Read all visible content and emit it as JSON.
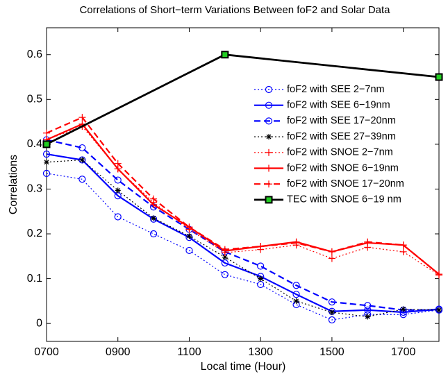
{
  "chart_data": {
    "type": "line",
    "title": "Correlations of Short−term Variations Between foF2 and Solar Data",
    "x_label": "Local time (Hour)",
    "y_label": "Correlations",
    "x": [
      700,
      800,
      900,
      1000,
      1100,
      1200,
      1300,
      1400,
      1500,
      1600,
      1700,
      1800
    ],
    "xlim": [
      700,
      1800
    ],
    "xticks": [
      {
        "value": 700,
        "label": "0700"
      },
      {
        "value": 900,
        "label": "0900"
      },
      {
        "value": 1100,
        "label": "1100"
      },
      {
        "value": 1300,
        "label": "1300"
      },
      {
        "value": 1500,
        "label": "1500"
      },
      {
        "value": 1700,
        "label": "1700"
      }
    ],
    "ylim": [
      -0.04,
      0.66
    ],
    "yticks": [
      0,
      0.1,
      0.2,
      0.3,
      0.4,
      0.5,
      0.6
    ],
    "grid": false,
    "legend": "upper right",
    "series": [
      {
        "name": "foF2 with SEE 2−7nm",
        "color": "#0000ff",
        "linestyle": "dotted",
        "marker": "circle",
        "values": [
          0.335,
          0.322,
          0.238,
          0.2,
          0.163,
          0.109,
          0.087,
          0.042,
          0.008,
          0.02,
          0.02,
          0.03
        ]
      },
      {
        "name": "foF2 with SEE 6−19nm",
        "color": "#0000ff",
        "linestyle": "solid",
        "marker": "circle",
        "values": [
          0.378,
          0.365,
          0.285,
          0.233,
          0.192,
          0.135,
          0.105,
          0.065,
          0.027,
          0.03,
          0.025,
          0.032
        ]
      },
      {
        "name": "foF2 with SEE 17−20nm",
        "color": "#0000ff",
        "linestyle": "dashed",
        "marker": "circle",
        "values": [
          0.41,
          0.392,
          0.32,
          0.26,
          0.21,
          0.16,
          0.128,
          0.085,
          0.048,
          0.04,
          0.03,
          0.03
        ]
      },
      {
        "name": "foF2 with SEE 27−39nm",
        "color": "#000000",
        "linestyle": "dotted",
        "marker": "star",
        "values": [
          0.36,
          0.365,
          0.297,
          0.235,
          0.195,
          0.148,
          0.1,
          0.05,
          0.025,
          0.015,
          0.032,
          0.03
        ]
      },
      {
        "name": "foF2 with SNOE 2−7nm",
        "color": "#ff0000",
        "linestyle": "dotted",
        "marker": "plus",
        "values": [
          0.41,
          0.44,
          0.345,
          0.27,
          0.21,
          0.158,
          0.165,
          0.175,
          0.145,
          0.17,
          0.16,
          0.108
        ]
      },
      {
        "name": "foF2 with SNOE 6−19nm",
        "color": "#ff0000",
        "linestyle": "solid",
        "marker": "plus",
        "values": [
          0.41,
          0.445,
          0.345,
          0.265,
          0.215,
          0.162,
          0.172,
          0.182,
          0.16,
          0.18,
          0.175,
          0.11
        ]
      },
      {
        "name": "foF2 with SNOE 17−20nm",
        "color": "#ff0000",
        "linestyle": "dashed",
        "marker": "plus",
        "values": [
          0.425,
          0.46,
          0.357,
          0.278,
          0.215,
          0.165,
          0.172,
          0.18,
          0.16,
          0.182,
          0.175,
          0.11
        ]
      },
      {
        "name": "TEC with SNOE 6−19 nm",
        "color": "#000000",
        "linestyle": "solid",
        "marker": "square",
        "marker_fill": "#22cc22",
        "x": [
          700,
          1200,
          1800
        ],
        "values": [
          0.4,
          0.6,
          0.55
        ]
      }
    ]
  }
}
